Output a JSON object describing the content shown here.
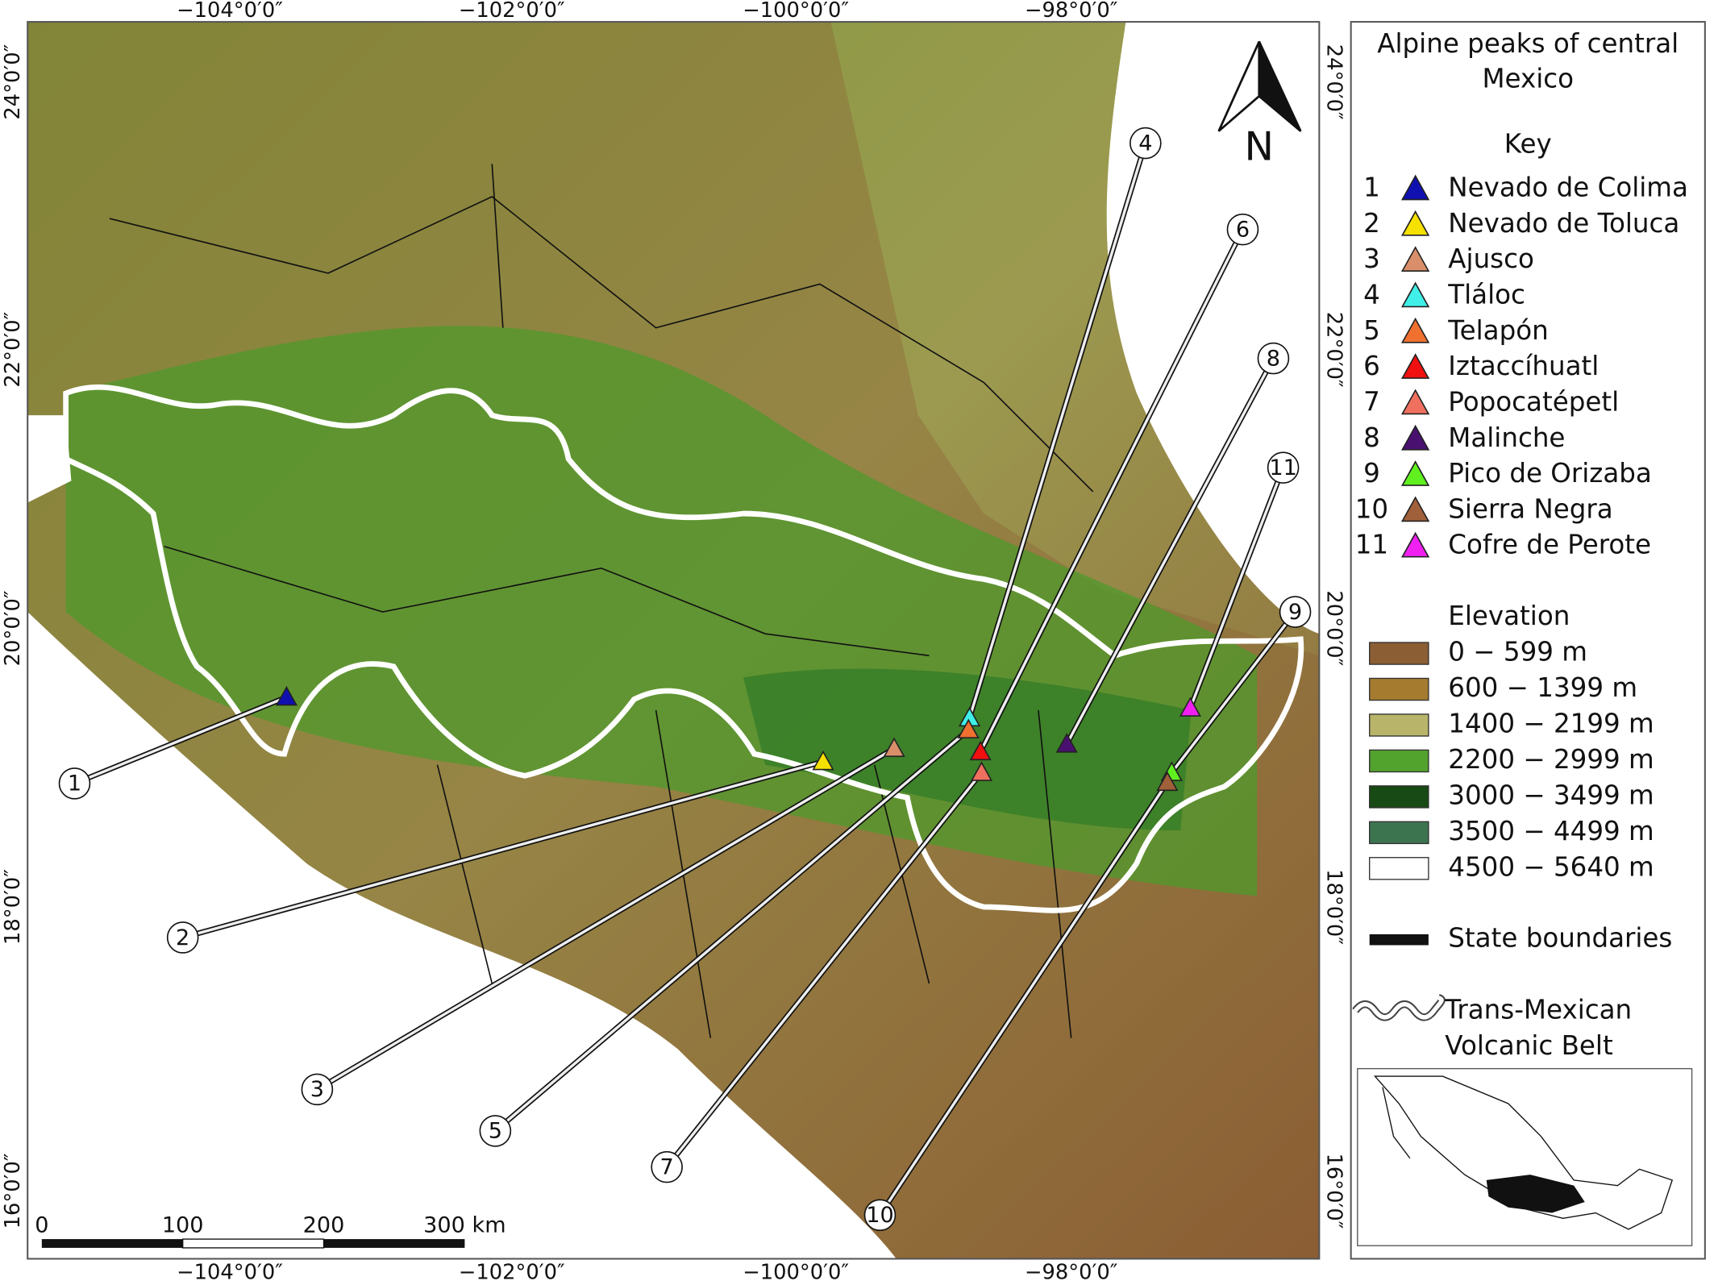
{
  "map": {
    "lon_labels": [
      "−104°0′0″",
      "−102°0′0″",
      "−100°0′0″",
      "−98°0′0″"
    ],
    "lat_labels": [
      "24°0′0″",
      "22°0′0″",
      "20°0′0″",
      "18°0′0″",
      "16°0′0″"
    ],
    "north": "N",
    "scale_labels": [
      "0",
      "100",
      "200",
      "300 km"
    ],
    "callouts": [
      "1",
      "2",
      "3",
      "4",
      "5",
      "6",
      "7",
      "8",
      "9",
      "10",
      "11"
    ]
  },
  "legend": {
    "title": "Alpine peaks of central Mexico",
    "key_title": "Key",
    "peaks": [
      {
        "number": "1",
        "name": "Nevado de Colima",
        "color": "#1010b0"
      },
      {
        "number": "2",
        "name": "Nevado de Toluca",
        "color": "#f5e000"
      },
      {
        "number": "3",
        "name": "Ajusco",
        "color": "#d9906a"
      },
      {
        "number": "4",
        "name": "Tláloc",
        "color": "#40f0e8"
      },
      {
        "number": "5",
        "name": "Telapón",
        "color": "#f07030"
      },
      {
        "number": "6",
        "name": "Iztaccíhuatl",
        "color": "#f01010"
      },
      {
        "number": "7",
        "name": "Popocatépetl",
        "color": "#f07060"
      },
      {
        "number": "8",
        "name": "Malinche",
        "color": "#4a1070"
      },
      {
        "number": "9",
        "name": "Pico de Orizaba",
        "color": "#60f020"
      },
      {
        "number": "10",
        "name": "Sierra Negra",
        "color": "#a0603a"
      },
      {
        "number": "11",
        "name": "Cofre de Perote",
        "color": "#f020f0"
      }
    ],
    "elevation_title": "Elevation",
    "elevation": [
      {
        "label": "0 − 599 m",
        "color": "#8b5e34"
      },
      {
        "label": "600 − 1399 m",
        "color": "#a57b2f"
      },
      {
        "label": "1400 − 2199 m",
        "color": "#b8b46a"
      },
      {
        "label": "2200 − 2999 m",
        "color": "#52a22e"
      },
      {
        "label": "3000 − 3499 m",
        "color": "#174a14"
      },
      {
        "label": "3500 − 4499 m",
        "color": "#3d7450"
      },
      {
        "label": "4500 − 5640 m",
        "color": "#ffffff"
      }
    ],
    "state_boundaries": "State boundaries",
    "tmvb": "Trans-Mexican Volcanic Belt"
  }
}
